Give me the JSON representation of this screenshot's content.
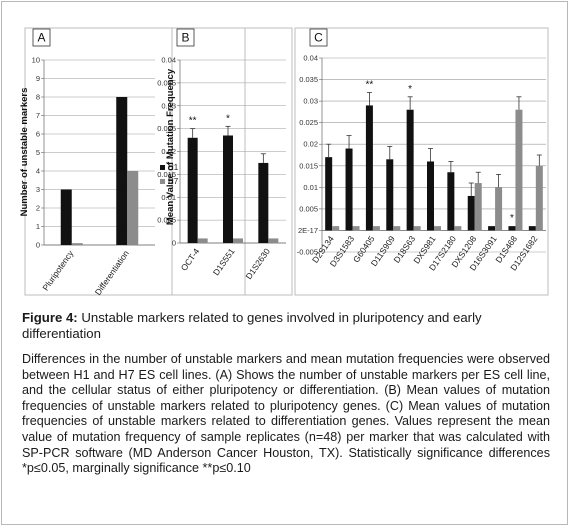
{
  "figure": {
    "caption_label": "Figure 4:",
    "caption_text": "Unstable markers related to genes involved in pluripotency and early differentiation",
    "description": "Differences in the number of unstable markers and mean mutation frequencies were observed between H1 and H7 ES cell lines. (A) Shows the number of unstable markers per ES cell line, and the cellular status of either pluripotency or differentiation. (B) Mean values of mutation frequencies of unstable markers related to pluripotency genes. (C) Mean values of mutation frequencies of unstable markers related to differentiation genes. Values represent the mean value of mutation frequency of sample replicates (n=48) per marker that was calculated with SP-PCR software (MD Anderson Cancer Houston, TX). Statistically significance differences *p≤0.05, marginally significance **p≤0.10"
  },
  "colors": {
    "h1": "#111111",
    "h7": "#8c8c8c",
    "grid": "#9a9a9a"
  },
  "chart_data": [
    {
      "panel": "A",
      "type": "bar",
      "ylabel": "Number of unstable markers",
      "ylim": [
        0,
        10
      ],
      "yticks": [
        "0",
        "1",
        "2",
        "3",
        "4",
        "5",
        "6",
        "7",
        "8",
        "9",
        "10"
      ],
      "categories": [
        "Pluripotency",
        "Differentiation"
      ],
      "legend": [
        "H1",
        "H7"
      ],
      "series": [
        {
          "name": "H1",
          "values": [
            3,
            8
          ]
        },
        {
          "name": "H7",
          "values": [
            0.1,
            4
          ]
        }
      ]
    },
    {
      "panel": "B",
      "type": "bar",
      "ylabel": "Mean Value of Mutation Frequency",
      "ylim": [
        0,
        0.04
      ],
      "yticks": [
        "0",
        "0.005",
        "0.01",
        "0.015",
        "0.02",
        "0.025",
        "0.03",
        "0.035",
        "0.04"
      ],
      "categories": [
        "OCT-4",
        "D1S551",
        "D1S2630"
      ],
      "series": [
        {
          "name": "H1",
          "values": [
            0.023,
            0.0235,
            0.0175
          ],
          "errors": [
            0.002,
            0.002,
            0.002
          ]
        },
        {
          "name": "H7",
          "values": [
            0.001,
            0.001,
            0.001
          ],
          "errors": [
            0,
            0,
            0
          ]
        }
      ],
      "significance": [
        "**",
        "*",
        ""
      ]
    },
    {
      "panel": "C",
      "type": "bar",
      "ylim": [
        -0.005,
        0.04
      ],
      "yticks": [
        "-0.005",
        "2E-17",
        "0.005",
        "0.01",
        "0.015",
        "0.02",
        "0.025",
        "0.03",
        "0.035",
        "0.04"
      ],
      "categories": [
        "D2S134",
        "D3S1583",
        "G60405",
        "D11S909",
        "D18S63",
        "DXS981",
        "D17S2180",
        "DXS1208",
        "D16S3091",
        "D1S468",
        "D12S1682"
      ],
      "series": [
        {
          "name": "H1",
          "values": [
            0.017,
            0.019,
            0.029,
            0.0165,
            0.028,
            0.016,
            0.0135,
            0.008,
            0.001,
            0.001,
            0.001
          ],
          "errors": [
            0.003,
            0.003,
            0.003,
            0.003,
            0.003,
            0.003,
            0.0025,
            0.003,
            0,
            0,
            0
          ]
        },
        {
          "name": "H7",
          "values": [
            0.001,
            0.001,
            0.001,
            0.001,
            0.001,
            0.001,
            0.001,
            0.011,
            0.01,
            0.028,
            0.015
          ],
          "errors": [
            0,
            0,
            0,
            0,
            0,
            0,
            0,
            0.0025,
            0.003,
            0.003,
            0.0025
          ]
        }
      ],
      "significance": [
        "",
        "",
        "**",
        "",
        "*",
        "",
        "",
        "",
        "",
        "*",
        ""
      ]
    }
  ]
}
